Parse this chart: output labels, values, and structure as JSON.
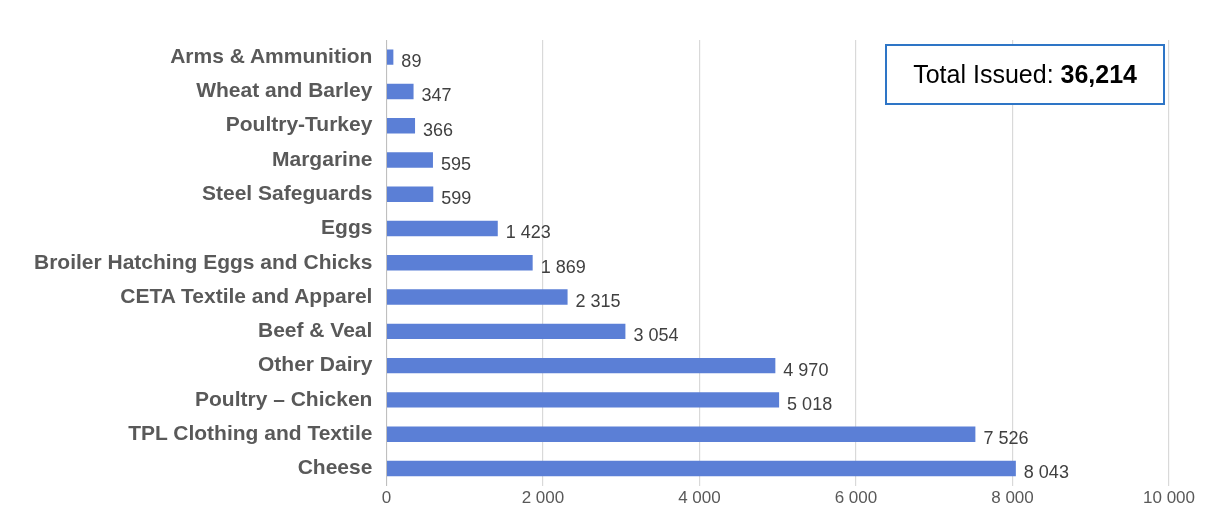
{
  "chart_data": {
    "type": "bar",
    "orientation": "horizontal",
    "categories": [
      "Arms & Ammunition",
      "Wheat and Barley",
      "Poultry-Turkey",
      "Margarine",
      "Steel Safeguards",
      "Eggs",
      "Broiler Hatching Eggs and Chicks",
      "CETA Textile and Apparel",
      "Beef & Veal",
      "Other Dairy",
      "Poultry – Chicken",
      "TPL Clothing and Textile",
      "Cheese"
    ],
    "values": [
      89,
      347,
      366,
      595,
      599,
      1423,
      1869,
      2315,
      3054,
      4970,
      5018,
      7526,
      8043
    ],
    "value_labels": [
      "89",
      "347",
      "366",
      "595",
      "599",
      "1 423",
      "1 869",
      "2 315",
      "3 054",
      "4 970",
      "5 018",
      "7 526",
      "8 043"
    ],
    "color": "#5b7fd6",
    "xlim": [
      0,
      10000
    ],
    "xticks": [
      0,
      {
        "value": 2000,
        "label": "2 000"
      },
      {
        "value": 4000,
        "label": "4 000"
      },
      {
        "value": 6000,
        "label": "6 000"
      },
      {
        "value": 8000,
        "label": "8 000"
      },
      {
        "value": 10000,
        "label": "10 000"
      }
    ],
    "grid": "x",
    "annotations": [
      "Total Issued: 36,214"
    ]
  }
}
